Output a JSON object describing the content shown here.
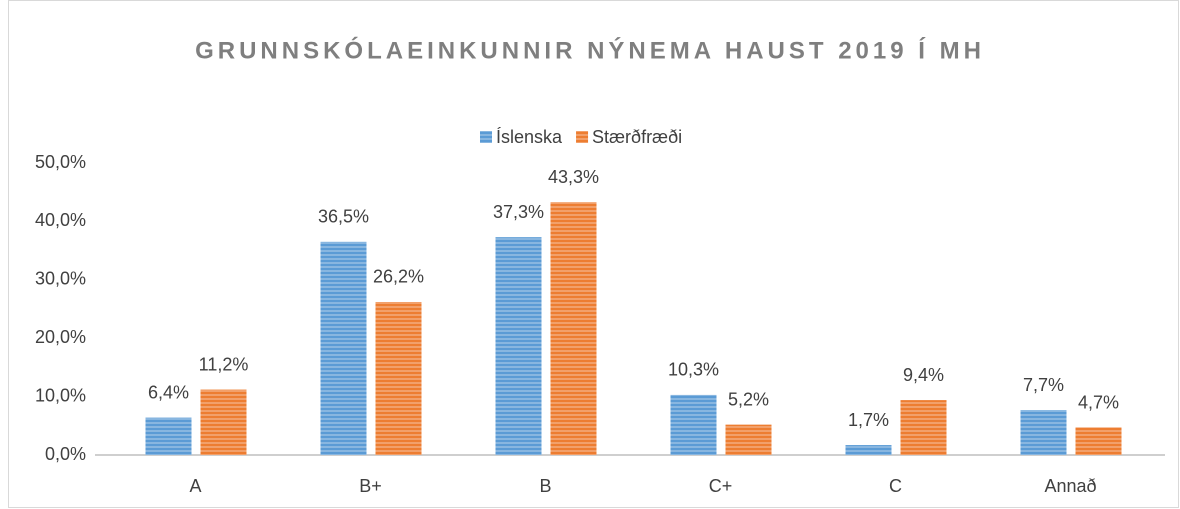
{
  "chart_data": {
    "type": "bar",
    "title": "GRUNNSKÓLAEINKUNNIR NÝNEMA HAUST 2019 Í MH",
    "categories": [
      "A",
      "B+",
      "B",
      "C+",
      "C",
      "Annað"
    ],
    "series": [
      {
        "name": "Íslenska",
        "color": "#5b9bd5",
        "values": [
          6.4,
          36.5,
          37.3,
          10.3,
          1.7,
          7.7
        ],
        "value_labels": [
          "6,4%",
          "36,5%",
          "37,3%",
          "10,3%",
          "1,7%",
          "7,7%"
        ]
      },
      {
        "name": "Stærðfræði",
        "color": "#ed7d31",
        "values": [
          11.2,
          26.2,
          43.3,
          5.2,
          9.4,
          4.7
        ],
        "value_labels": [
          "11,2%",
          "26,2%",
          "43,3%",
          "5,2%",
          "9,4%",
          "4,7%"
        ]
      }
    ],
    "ylim": [
      0,
      50
    ],
    "yticks": [
      {
        "value": 0,
        "label": "0,0%"
      },
      {
        "value": 10,
        "label": "10,0%"
      },
      {
        "value": 20,
        "label": "20,0%"
      },
      {
        "value": 30,
        "label": "30,0%"
      },
      {
        "value": 40,
        "label": "40,0%"
      },
      {
        "value": 50,
        "label": "50,0%"
      }
    ],
    "legend": "top",
    "grid": false
  }
}
